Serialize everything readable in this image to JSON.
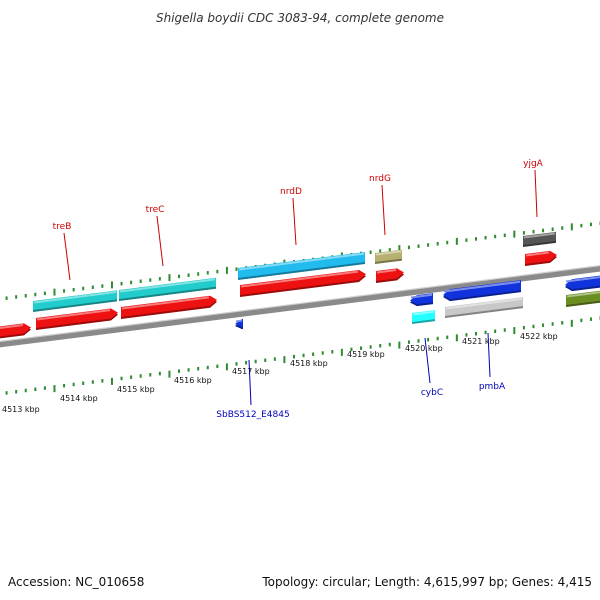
{
  "title": "Shigella boydii CDC 3083-94, complete genome",
  "accession": "Accession: NC_010658",
  "summary": "Topology: circular; Length: 4,615,997 bp; Genes: 4,415",
  "colors": {
    "backbone": "#8a8a8a",
    "tick": "#2e8b2e",
    "label_top": "#cc0000",
    "label_bottom": "#0000bb"
  },
  "axis": {
    "tick_labels": [
      "4513 kbp",
      "4514 kbp",
      "4515 kbp",
      "4516 kbp",
      "4517 kbp",
      "4518 kbp",
      "4519 kbp",
      "4520 kbp",
      "4521 kbp",
      "4522 kbp"
    ]
  },
  "genes_top": [
    {
      "name": "treB",
      "color": "#22cccc"
    },
    {
      "name": "treC",
      "color": "#22cccc"
    },
    {
      "name": "nrdD",
      "color": "#22bbee"
    },
    {
      "name": "nrdG",
      "color": "#b8b070"
    },
    {
      "name": "yjgA",
      "color": "#555555"
    }
  ],
  "genes_bottom": [
    {
      "name": "SbBS512_E4845",
      "color": "#1133dd"
    },
    {
      "name": "cybC",
      "color": "#1133dd"
    },
    {
      "name": "pmbA",
      "color": "#1133dd"
    }
  ]
}
